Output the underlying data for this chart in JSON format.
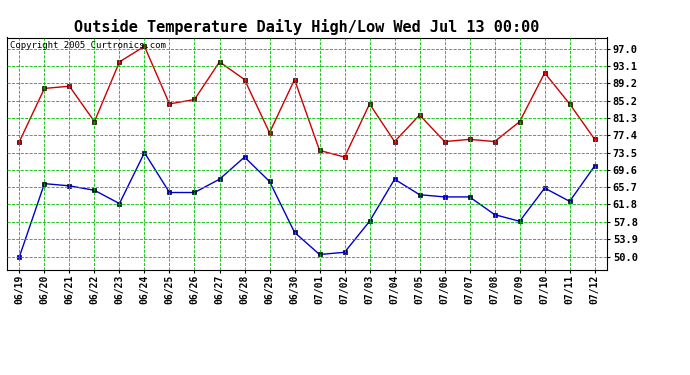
{
  "title": "Outside Temperature Daily High/Low Wed Jul 13 00:00",
  "copyright": "Copyright 2005 Curtronics.com",
  "x_labels": [
    "06/19",
    "06/20",
    "06/21",
    "06/22",
    "06/23",
    "06/24",
    "06/25",
    "06/26",
    "06/27",
    "06/28",
    "06/29",
    "06/30",
    "07/01",
    "07/02",
    "07/03",
    "07/04",
    "07/05",
    "07/06",
    "07/07",
    "07/08",
    "07/09",
    "07/10",
    "07/11",
    "07/12"
  ],
  "high_values": [
    76.0,
    88.0,
    88.5,
    80.5,
    94.0,
    97.5,
    84.5,
    85.5,
    94.0,
    90.0,
    78.0,
    90.0,
    74.0,
    72.5,
    84.5,
    76.0,
    82.0,
    76.0,
    76.5,
    76.0,
    80.5,
    91.5,
    84.5,
    76.5
  ],
  "low_values": [
    50.0,
    66.5,
    66.0,
    65.0,
    62.0,
    73.5,
    64.5,
    64.5,
    67.5,
    72.5,
    67.0,
    55.5,
    50.5,
    51.0,
    58.0,
    67.5,
    64.0,
    63.5,
    63.5,
    59.5,
    58.0,
    65.5,
    62.5,
    70.5
  ],
  "y_ticks": [
    50.0,
    53.9,
    57.8,
    61.8,
    65.7,
    69.6,
    73.5,
    77.4,
    81.3,
    85.2,
    89.2,
    93.1,
    97.0
  ],
  "ylim": [
    47.0,
    99.5
  ],
  "high_color": "#cc0000",
  "low_color": "#0000cc",
  "bg_color": "#ffffff",
  "plot_bg_color": "#ffffff",
  "grid_color": "#00bb00",
  "title_fontsize": 11,
  "copyright_fontsize": 6.5,
  "tick_fontsize": 7,
  "ytick_fontsize": 7.5
}
